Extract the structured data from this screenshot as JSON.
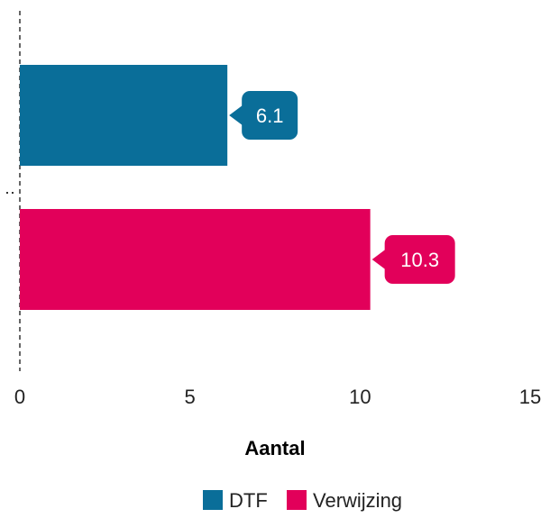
{
  "chart_data": {
    "type": "bar",
    "orientation": "horizontal",
    "xlabel": "Aantal",
    "xlim": [
      0,
      15
    ],
    "xticks": [
      "0",
      "5",
      "10",
      "15"
    ],
    "grid": false,
    "legend_position": "bottom",
    "series": [
      {
        "name": "DTF",
        "value": 6.1,
        "label": "6.1",
        "color": "#0a6e99"
      },
      {
        "name": "Verwijzing",
        "value": 10.3,
        "label": "10.3",
        "color": "#e2005a"
      }
    ]
  }
}
